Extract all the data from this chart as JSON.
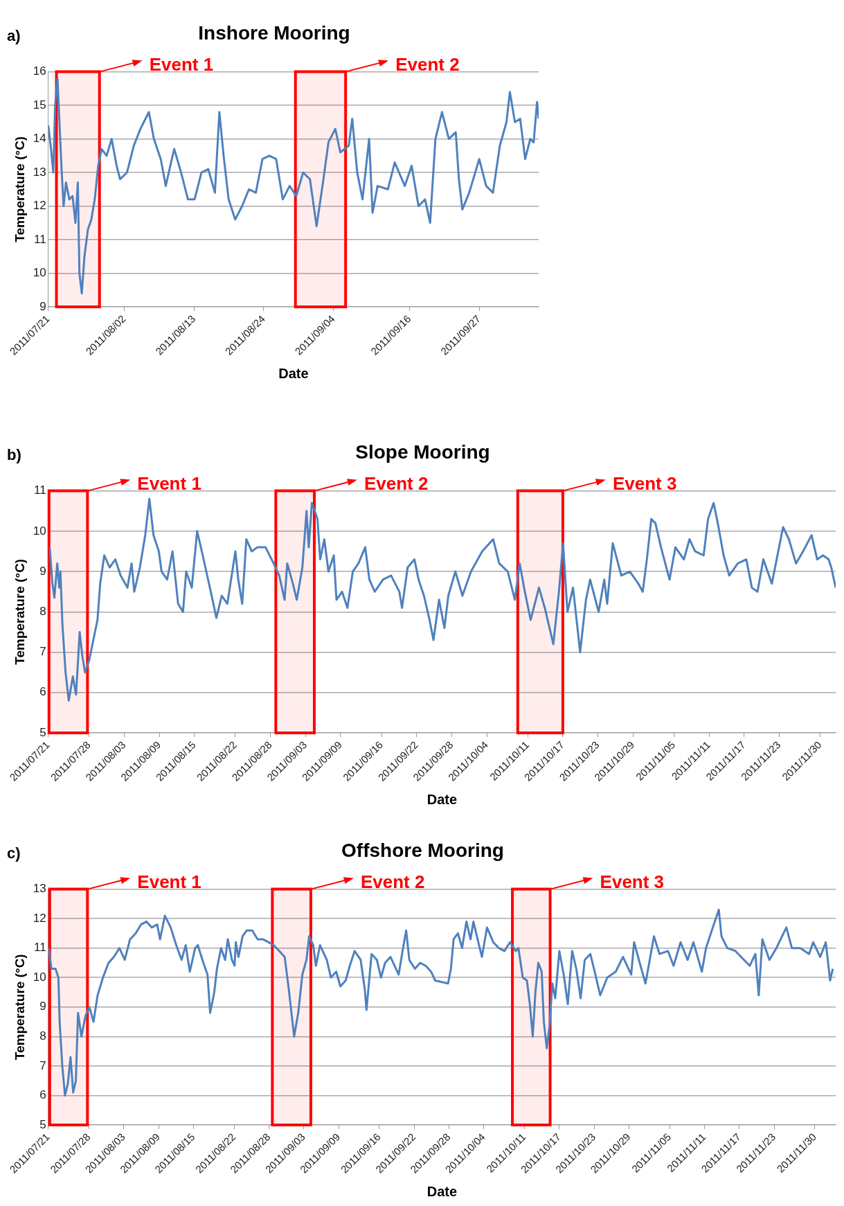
{
  "chart_data": [
    {
      "type": "line",
      "title": "Inshore Mooring",
      "xlabel": "Date",
      "ylabel": "Temperature (°C)",
      "annotations": [
        "a)"
      ],
      "color": "#4f81bd",
      "grid": "y",
      "legend": false,
      "marker": "none",
      "line_style": "solid",
      "x": [
        "2011-07-21T00:00",
        "2011-07-21T09:00",
        "2011-07-21T19:00",
        "2011-07-22T02:00",
        "2011-07-22T11:00",
        "2011-07-22T20:00",
        "2011-07-23T03:00",
        "2011-07-23T10:00",
        "2011-07-23T19:00",
        "2011-07-24T08:00",
        "2011-07-24T20:00",
        "2011-07-25T07:00",
        "2011-07-25T16:00",
        "2011-07-25T22:00",
        "2011-07-26T07:00",
        "2011-07-26T17:00",
        "2011-07-27T06:00",
        "2011-07-27T19:00",
        "2011-07-28T08:00",
        "2011-07-28T21:00",
        "2011-07-29T10:00",
        "2011-07-30T05:00",
        "2011-07-31T00:00",
        "2011-07-31T19:00",
        "2011-08-01T08:00",
        "2011-08-02T10:00",
        "2011-08-03T12:00",
        "2011-08-04T13:00",
        "2011-08-05T21:00",
        "2011-08-06T16:00",
        "2011-08-07T18:00",
        "2011-08-08T13:00",
        "2011-08-09T09:00",
        "2011-08-09T21:00",
        "2011-08-10T23:00",
        "2011-08-12T01:00",
        "2011-08-13T02:00",
        "2011-08-14T04:00",
        "2011-08-15T06:00",
        "2011-08-16T07:00",
        "2011-08-17T00:00",
        "2011-08-17T16:00",
        "2011-08-18T11:00",
        "2011-08-19T12:00",
        "2011-08-20T14:00",
        "2011-08-21T16:00",
        "2011-08-22T18:00",
        "2011-08-23T19:00",
        "2011-08-24T21:00",
        "2011-08-25T23:00",
        "2011-08-27T00:00",
        "2011-08-28T02:00",
        "2011-08-29T03:00",
        "2011-08-30T05:00",
        "2011-08-31T07:00",
        "2011-09-01T08:00",
        "2011-09-02T10:00",
        "2011-09-03T05:00",
        "2011-09-04T07:00",
        "2011-09-05T02:00",
        "2011-09-06T10:00",
        "2011-09-06T23:00",
        "2011-09-07T18:00",
        "2011-09-08T14:00",
        "2011-09-09T15:00",
        "2011-09-10T04:00",
        "2011-09-10T23:00",
        "2011-09-12T14:00",
        "2011-09-13T16:00",
        "2011-09-15T06:00",
        "2011-09-16T08:00",
        "2011-09-17T10:00",
        "2011-09-18T11:00",
        "2011-09-19T06:00",
        "2011-09-20T02:00",
        "2011-09-21T03:00",
        "2011-09-22T05:00",
        "2011-09-23T07:00",
        "2011-09-23T19:00",
        "2011-09-24T08:00",
        "2011-09-25T10:00",
        "2011-09-27T00:00",
        "2011-09-28T02:00",
        "2011-09-29T04:00",
        "2011-09-30T06:00",
        "2011-10-01T07:00",
        "2011-10-01T20:00",
        "2011-10-02T15:00",
        "2011-10-03T11:00",
        "2011-10-04T06:00",
        "2011-10-05T01:00",
        "2011-10-05T14:00",
        "2011-10-06T03:00",
        "2011-10-06T09:00"
      ],
      "values": [
        14.4,
        13.8,
        13.0,
        15.0,
        15.8,
        14.2,
        13.0,
        12.0,
        12.7,
        12.2,
        12.3,
        11.5,
        12.7,
        10.0,
        9.4,
        10.5,
        11.3,
        11.6,
        12.2,
        13.2,
        13.7,
        13.5,
        14.0,
        13.2,
        12.8,
        13.0,
        13.8,
        14.3,
        14.8,
        14.0,
        13.4,
        12.6,
        13.3,
        13.7,
        13.0,
        12.2,
        12.2,
        13.0,
        13.1,
        12.4,
        14.8,
        13.5,
        12.2,
        11.6,
        12.0,
        12.5,
        12.4,
        13.4,
        13.5,
        13.4,
        12.2,
        12.6,
        12.3,
        13.0,
        12.8,
        11.4,
        12.8,
        13.9,
        14.3,
        13.6,
        13.8,
        14.6,
        13.0,
        12.2,
        14.0,
        11.8,
        12.6,
        12.5,
        13.3,
        12.6,
        13.2,
        12.0,
        12.2,
        11.5,
        14.0,
        14.8,
        14.0,
        14.2,
        12.8,
        11.9,
        12.4,
        13.4,
        12.6,
        12.4,
        13.8,
        14.5,
        15.4,
        14.5,
        14.6,
        13.4,
        14.0,
        13.9,
        15.1,
        14.6
      ],
      "xlim": [
        "2011-07-21",
        "2011-10-06T09:00"
      ],
      "xticks": [
        {
          "value": "2011-07-21",
          "label": "2011/07/21"
        },
        {
          "value": "2011-08-02",
          "label": "2011/08/02"
        },
        {
          "value": "2011-08-13",
          "label": "2011/08/13"
        },
        {
          "value": "2011-08-24",
          "label": "2011/08/24"
        },
        {
          "value": "2011-09-04",
          "label": "2011/09/04"
        },
        {
          "value": "2011-09-16",
          "label": "2011/09/16"
        },
        {
          "value": "2011-09-27",
          "label": "2011/09/27"
        }
      ],
      "ylim": [
        9,
        16
      ],
      "yticks": [
        9,
        10,
        11,
        12,
        13,
        14,
        15,
        16
      ],
      "bands": [
        {
          "axis": "x",
          "from": "2011-07-22T07:00",
          "to": "2011-07-29T02:00",
          "label": "Event 1",
          "color": "#ff0000"
        },
        {
          "axis": "x",
          "from": "2011-08-29T00:00",
          "to": "2011-09-05T22:00",
          "label": "Event 2",
          "color": "#ff0000"
        }
      ]
    },
    {
      "type": "line",
      "title": "Slope Mooring",
      "xlabel": "Date",
      "ylabel": "Temperature (°C)",
      "annotations": [
        "b)"
      ],
      "color": "#4f81bd",
      "grid": "y",
      "legend": false,
      "marker": "none",
      "line_style": "solid",
      "x": [
        "2011-07-21T06:00",
        "2011-07-21T17:00",
        "2011-07-22T01:00",
        "2011-07-22T13:00",
        "2011-07-22T21:00",
        "2011-07-23T02:00",
        "2011-07-23T10:00",
        "2011-07-23T23:00",
        "2011-07-24T12:00",
        "2011-07-25T05:00",
        "2011-07-25T18:00",
        "2011-07-26T09:00",
        "2011-07-26T20:00",
        "2011-07-27T07:00",
        "2011-07-28T00:00",
        "2011-07-28T17:00",
        "2011-07-29T10:00",
        "2011-07-29T21:00",
        "2011-07-30T14:00",
        "2011-07-31T12:00",
        "2011-08-01T11:00",
        "2011-08-02T09:00",
        "2011-08-03T13:00",
        "2011-08-04T06:00",
        "2011-08-04T17:00",
        "2011-08-05T16:00",
        "2011-08-06T14:00",
        "2011-08-07T07:00",
        "2011-08-08T00:00",
        "2011-08-08T22:00",
        "2011-08-09T09:00",
        "2011-08-10T08:00",
        "2011-08-11T06:00",
        "2011-08-12T05:00",
        "2011-08-13T01:00",
        "2011-08-13T14:00",
        "2011-08-14T13:00",
        "2011-08-15T11:00",
        "2011-08-16T10:00",
        "2011-08-17T08:00",
        "2011-08-17T19:00",
        "2011-08-18T18:00",
        "2011-08-19T16:00",
        "2011-08-20T15:00",
        "2011-08-22T00:00",
        "2011-08-22T12:00",
        "2011-08-23T04:00",
        "2011-08-23T21:00",
        "2011-08-24T19:00",
        "2011-08-25T18:00",
        "2011-08-27T04:00",
        "2011-08-28T13:00",
        "2011-08-29T12:00",
        "2011-08-30T10:00",
        "2011-08-30T21:00",
        "2011-08-31T20:00",
        "2011-09-01T12:00",
        "2011-09-02T11:00",
        "2011-09-03T04:00",
        "2011-09-03T13:00",
        "2011-09-04T02:00",
        "2011-09-05T01:00",
        "2011-09-05T12:00",
        "2011-09-06T05:00",
        "2011-09-06T22:00",
        "2011-09-07T20:00",
        "2011-09-08T07:00",
        "2011-09-09T06:00",
        "2011-09-10T04:00",
        "2011-09-11T02:00",
        "2011-09-12T01:00",
        "2011-09-13T05:00",
        "2011-09-13T22:00",
        "2011-09-14T20:00",
        "2011-09-16T06:00",
        "2011-09-17T15:00",
        "2011-09-19T01:00",
        "2011-09-19T12:00",
        "2011-09-20T11:00",
        "2011-09-21T15:00",
        "2011-09-22T08:00",
        "2011-09-23T06:00",
        "2011-09-24T05:00",
        "2011-09-24T21:00",
        "2011-09-25T20:00",
        "2011-09-26T18:00",
        "2011-09-27T10:00",
        "2011-09-28T15:00",
        "2011-09-29T20:00",
        "2011-10-01T07:00",
        "2011-10-03T05:00",
        "2011-10-05T02:00",
        "2011-10-06T03:00",
        "2011-10-07T14:00",
        "2011-10-08T19:00",
        "2011-10-09T15:00",
        "2011-10-10T12:00",
        "2011-10-11T12:00",
        "2011-10-12T22:00",
        "2011-10-13T22:00",
        "2011-10-15T09:00",
        "2011-10-16T08:00",
        "2011-10-17T01:00",
        "2011-10-17T19:00",
        "2011-10-18T18:00",
        "2011-10-19T23:00",
        "2011-10-20T23:00",
        "2011-10-21T16:00",
        "2011-10-23T03:00",
        "2011-10-24T02:00",
        "2011-10-24T14:00",
        "2011-10-25T13:00",
        "2011-10-27T00:00",
        "2011-10-28T11:00",
        "2011-10-29T22:00",
        "2011-10-30T16:00",
        "2011-10-31T09:00",
        "2011-11-01T03:00",
        "2011-11-01T20:00",
        "2011-11-02T19:00",
        "2011-11-04T06:00",
        "2011-11-05T06:00",
        "2011-11-06T17:00",
        "2011-11-07T16:00",
        "2011-11-08T15:00",
        "2011-11-10T02:00",
        "2011-11-10T20:00",
        "2011-11-11T19:00",
        "2011-11-12T12:00",
        "2011-11-13T12:00",
        "2011-11-14T11:00",
        "2011-11-15T22:00",
        "2011-11-17T09:00",
        "2011-11-18T08:00",
        "2011-11-19T07:00",
        "2011-11-20T07:00",
        "2011-11-21T18:00",
        "2011-11-22T17:00",
        "2011-11-23T16:00",
        "2011-11-24T16:00",
        "2011-11-25T21:00",
        "2011-11-27T02:00",
        "2011-11-28T13:00",
        "2011-11-29T12:00",
        "2011-11-30T12:00",
        "2011-12-01T11:00",
        "2011-12-01T22:00",
        "2011-12-02T16:00"
      ],
      "values": [
        9.6,
        8.7,
        8.35,
        9.2,
        8.6,
        9.0,
        7.7,
        6.5,
        5.8,
        6.4,
        5.95,
        7.5,
        6.9,
        6.5,
        6.8,
        7.3,
        7.8,
        8.7,
        9.4,
        9.1,
        9.3,
        8.9,
        8.6,
        9.2,
        8.5,
        9.1,
        9.9,
        10.8,
        9.9,
        9.5,
        9.0,
        8.8,
        9.5,
        8.2,
        8.0,
        9.0,
        8.6,
        10.0,
        9.4,
        8.8,
        8.5,
        7.85,
        8.4,
        8.2,
        9.5,
        8.8,
        8.2,
        9.8,
        9.5,
        9.6,
        9.6,
        9.2,
        8.9,
        8.3,
        9.2,
        8.7,
        8.3,
        9.1,
        10.5,
        9.6,
        10.7,
        10.3,
        9.3,
        9.8,
        9.0,
        9.4,
        8.3,
        8.5,
        8.1,
        9.0,
        9.2,
        9.6,
        8.8,
        8.5,
        8.8,
        8.9,
        8.5,
        8.1,
        9.1,
        9.3,
        8.8,
        8.4,
        7.8,
        7.3,
        8.3,
        7.6,
        8.4,
        9.0,
        8.4,
        9.0,
        9.5,
        9.8,
        9.2,
        9.0,
        8.3,
        9.2,
        8.5,
        7.8,
        8.6,
        8.1,
        7.2,
        8.5,
        9.7,
        8.0,
        8.6,
        7.0,
        8.3,
        8.8,
        8.0,
        8.8,
        8.2,
        9.7,
        8.9,
        9.0,
        8.7,
        8.5,
        9.3,
        10.3,
        10.2,
        9.6,
        8.8,
        9.6,
        9.3,
        9.8,
        9.5,
        9.4,
        10.3,
        10.7,
        10.2,
        9.4,
        8.9,
        9.2,
        9.3,
        8.6,
        8.5,
        9.3,
        8.7,
        9.4,
        10.1,
        9.8,
        9.2,
        9.5,
        9.9,
        9.3,
        9.4,
        9.3,
        9.1,
        8.6
      ],
      "xlim": [
        "2011-07-21",
        "2011-12-02T16:00"
      ],
      "xticks": [
        {
          "value": "2011-07-21",
          "label": "2011/07/21"
        },
        {
          "value": "2011-07-28",
          "label": "2011/07/28"
        },
        {
          "value": "2011-08-03",
          "label": "2011/08/03"
        },
        {
          "value": "2011-08-09",
          "label": "2011/08/09"
        },
        {
          "value": "2011-08-15",
          "label": "2011/08/15"
        },
        {
          "value": "2011-08-22",
          "label": "2011/08/22"
        },
        {
          "value": "2011-08-28",
          "label": "2011/08/28"
        },
        {
          "value": "2011-09-03",
          "label": "2011/09/03"
        },
        {
          "value": "2011-09-09",
          "label": "2011/09/09"
        },
        {
          "value": "2011-09-16",
          "label": "2011/09/16"
        },
        {
          "value": "2011-09-22",
          "label": "2011/09/22"
        },
        {
          "value": "2011-09-28",
          "label": "2011/09/28"
        },
        {
          "value": "2011-10-04",
          "label": "2011/10/04"
        },
        {
          "value": "2011-10-11",
          "label": "2011/10/11"
        },
        {
          "value": "2011-10-17",
          "label": "2011/10/17"
        },
        {
          "value": "2011-10-23",
          "label": "2011/10/23"
        },
        {
          "value": "2011-10-29",
          "label": "2011/10/29"
        },
        {
          "value": "2011-11-05",
          "label": "2011/11/05"
        },
        {
          "value": "2011-11-11",
          "label": "2011/11/11"
        },
        {
          "value": "2011-11-17",
          "label": "2011/11/17"
        },
        {
          "value": "2011-11-23",
          "label": "2011/11/23"
        },
        {
          "value": "2011-11-30",
          "label": "2011/11/30"
        }
      ],
      "ylim": [
        5,
        11
      ],
      "yticks": [
        5,
        6,
        7,
        8,
        9,
        10,
        11
      ],
      "bands": [
        {
          "axis": "x",
          "from": "2011-07-21T03:00",
          "to": "2011-07-27T17:00",
          "label": "Event 1",
          "color": "#ff0000"
        },
        {
          "axis": "x",
          "from": "2011-08-28T22:00",
          "to": "2011-09-04T12:00",
          "label": "Event 2",
          "color": "#ff0000"
        },
        {
          "axis": "x",
          "from": "2011-10-09T07:00",
          "to": "2011-10-17T00:00",
          "label": "Event 3",
          "color": "#ff0000"
        }
      ]
    },
    {
      "type": "line",
      "title": "Offshore Mooring",
      "xlabel": "Date",
      "ylabel": "Temperature (°C)",
      "annotations": [
        "c)"
      ],
      "color": "#4f81bd",
      "grid": "y",
      "legend": false,
      "marker": "none",
      "line_style": "solid",
      "x": [
        "2011-07-21T02:00",
        "2011-07-21T13:00",
        "2011-07-22T06:00",
        "2011-07-22T18:00",
        "2011-07-22T23:00",
        "2011-07-23T10:00",
        "2011-07-23T21:00",
        "2011-07-24T09:00",
        "2011-07-24T20:00",
        "2011-07-25T07:00",
        "2011-07-25T18:00",
        "2011-07-26T03:00",
        "2011-07-26T17:00",
        "2011-07-27T10:00",
        "2011-07-28T02:00",
        "2011-07-28T19:00",
        "2011-07-29T12:00",
        "2011-07-30T10:00",
        "2011-07-31T09:00",
        "2011-08-01T07:00",
        "2011-08-02T06:00",
        "2011-08-03T04:00",
        "2011-08-04T02:00",
        "2011-08-05T01:00",
        "2011-08-05T23:00",
        "2011-08-06T22:00",
        "2011-08-07T20:00",
        "2011-08-08T18:00",
        "2011-08-09T06:00",
        "2011-08-10T02:00",
        "2011-08-11T02:00",
        "2011-08-12T01:00",
        "2011-08-12T23:00",
        "2011-08-13T16:00",
        "2011-08-14T09:00",
        "2011-08-15T07:00",
        "2011-08-15T18:00",
        "2011-08-16T17:00",
        "2011-08-17T10:00",
        "2011-08-17T21:00",
        "2011-08-18T14:00",
        "2011-08-19T01:00",
        "2011-08-19T18:00",
        "2011-08-20T11:00",
        "2011-08-20T22:00",
        "2011-08-21T15:00",
        "2011-08-22T02:00",
        "2011-08-22T07:00",
        "2011-08-22T18:00",
        "2011-08-23T11:00",
        "2011-08-24T04:00",
        "2011-08-25T03:00",
        "2011-08-26T01:00",
        "2011-08-26T23:00",
        "2011-08-27T22:00",
        "2011-08-28T20:00",
        "2011-08-29T19:00",
        "2011-08-30T17:00",
        "2011-08-31T10:00",
        "2011-09-01T08:00",
        "2011-09-02T01:00",
        "2011-09-02T18:00",
        "2011-09-03T11:00",
        "2011-09-03T22:00",
        "2011-09-04T15:00",
        "2011-09-05T02:00",
        "2011-09-05T19:00",
        "2011-09-06T23:00",
        "2011-09-07T16:00",
        "2011-09-08T14:00",
        "2011-09-09T07:00",
        "2011-09-10T05:00",
        "2011-09-10T22:00",
        "2011-09-11T18:00",
        "2011-09-12T19:00",
        "2011-09-13T12:00",
        "2011-09-13T19:00",
        "2011-09-14T16:00",
        "2011-09-15T14:00",
        "2011-09-16T07:00",
        "2011-09-17T00:00",
        "2011-09-17T22:00",
        "2011-09-19T08:00",
        "2011-09-20T00:00",
        "2011-09-20T15:00",
        "2011-09-21T04:00",
        "2011-09-22T03:00",
        "2011-09-23T01:00",
        "2011-09-24T00:00",
        "2011-09-24T22:00",
        "2011-09-25T15:00",
        "2011-09-27T20:00",
        "2011-09-28T08:00",
        "2011-09-28T19:00",
        "2011-09-29T13:00",
        "2011-09-30T06:00",
        "2011-10-01T00:00",
        "2011-10-01T17:00",
        "2011-10-02T05:00",
        "2011-10-03T04:00",
        "2011-10-03T16:00",
        "2011-10-04T13:00",
        "2011-10-05T15:00",
        "2011-10-06T14:00",
        "2011-10-07T13:00",
        "2011-10-08T12:00",
        "2011-10-09T12:00",
        "2011-10-09T23:00",
        "2011-10-10T17:00",
        "2011-10-11T10:00",
        "2011-10-11T22:00",
        "2011-10-12T10:00",
        "2011-10-12T21:00",
        "2011-10-13T09:00",
        "2011-10-13T23:00",
        "2011-10-14T08:00",
        "2011-10-14T20:00",
        "2011-10-15T08:00",
        "2011-10-15T19:00",
        "2011-10-16T07:00",
        "2011-10-17T00:00",
        "2011-10-17T18:00",
        "2011-10-18T11:00",
        "2011-10-19T05:00",
        "2011-10-19T22:00",
        "2011-10-20T16:00",
        "2011-10-21T09:00",
        "2011-10-22T08:00",
        "2011-10-23T02:00",
        "2011-10-24T01:00",
        "2011-10-25T06:00",
        "2011-10-26T17:00",
        "2011-10-27T23:00",
        "2011-10-29T09:00",
        "2011-10-29T21:00",
        "2011-10-30T20:00",
        "2011-10-31T20:00",
        "2011-11-02T07:00",
        "2011-11-03T06:00",
        "2011-11-04T17:00",
        "2011-11-05T16:00",
        "2011-11-06T21:00",
        "2011-11-08T02:00",
        "2011-11-09T02:00",
        "2011-11-10T13:00",
        "2011-11-11T06:00",
        "2011-11-12T06:00",
        "2011-11-13T11:00",
        "2011-11-13T22:00",
        "2011-11-14T22:00",
        "2011-11-16T08:00",
        "2011-11-17T19:00",
        "2011-11-18T19:00",
        "2011-11-19T18:00",
        "2011-11-20T08:00",
        "2011-11-20T23:00",
        "2011-11-22T04:00",
        "2011-11-23T09:00",
        "2011-11-25T02:00",
        "2011-11-26T01:00",
        "2011-11-27T12:00",
        "2011-11-29T00:00",
        "2011-11-29T17:00",
        "2011-11-30T22:00",
        "2011-12-01T21:00",
        "2011-12-02T15:00",
        "2011-12-03T02:00"
      ],
      "values": [
        11.0,
        10.3,
        10.3,
        10.0,
        8.5,
        7.0,
        6.0,
        6.4,
        7.3,
        6.1,
        6.5,
        8.8,
        8.0,
        8.7,
        9.0,
        8.5,
        9.4,
        10.0,
        10.5,
        10.7,
        11.0,
        10.6,
        11.3,
        11.5,
        11.8,
        11.9,
        11.7,
        11.8,
        11.3,
        12.1,
        11.7,
        11.1,
        10.6,
        11.1,
        10.2,
        11.0,
        11.1,
        10.5,
        10.1,
        8.8,
        9.5,
        10.3,
        11.0,
        10.6,
        11.3,
        10.6,
        10.4,
        11.2,
        10.7,
        11.4,
        11.6,
        11.6,
        11.3,
        11.3,
        11.2,
        11.1,
        10.9,
        10.7,
        9.6,
        8.0,
        8.8,
        10.1,
        10.6,
        11.4,
        11.1,
        10.4,
        11.1,
        10.6,
        10.0,
        10.2,
        9.7,
        9.9,
        10.4,
        10.9,
        10.6,
        9.6,
        8.9,
        10.8,
        10.6,
        10.0,
        10.5,
        10.7,
        10.1,
        10.9,
        11.6,
        10.6,
        10.3,
        10.5,
        10.4,
        10.2,
        9.9,
        9.8,
        10.3,
        11.3,
        11.5,
        11.0,
        11.9,
        11.3,
        11.9,
        11.1,
        10.7,
        11.7,
        11.2,
        11.0,
        10.9,
        11.2,
        10.9,
        11.0,
        10.0,
        9.9,
        9.1,
        8.0,
        9.5,
        10.5,
        10.2,
        8.5,
        7.6,
        8.4,
        9.8,
        9.3,
        10.9,
        10.1,
        9.1,
        10.9,
        10.3,
        9.3,
        10.6,
        10.8,
        10.2,
        9.4,
        10.0,
        10.2,
        10.7,
        10.1,
        11.2,
        10.5,
        9.8,
        11.4,
        10.8,
        10.9,
        10.4,
        11.2,
        10.6,
        11.2,
        10.2,
        11.0,
        11.6,
        12.3,
        11.4,
        11.0,
        10.9,
        10.6,
        10.4,
        10.8,
        9.4,
        11.3,
        10.6,
        11.0,
        11.7,
        11.0,
        11.0,
        10.8,
        11.2,
        10.7,
        11.2,
        9.9,
        10.3
      ],
      "xlim": [
        "2011-07-21",
        "2011-12-03T14:00"
      ],
      "xticks": [
        {
          "value": "2011-07-21",
          "label": "2011/07/21"
        },
        {
          "value": "2011-07-28",
          "label": "2011/07/28"
        },
        {
          "value": "2011-08-03",
          "label": "2011/08/03"
        },
        {
          "value": "2011-08-09",
          "label": "2011/08/09"
        },
        {
          "value": "2011-08-15",
          "label": "2011/08/15"
        },
        {
          "value": "2011-08-22",
          "label": "2011/08/22"
        },
        {
          "value": "2011-08-28",
          "label": "2011/08/28"
        },
        {
          "value": "2011-09-03",
          "label": "2011/09/03"
        },
        {
          "value": "2011-09-09",
          "label": "2011/09/09"
        },
        {
          "value": "2011-09-16",
          "label": "2011/09/16"
        },
        {
          "value": "2011-09-22",
          "label": "2011/09/22"
        },
        {
          "value": "2011-09-28",
          "label": "2011/09/28"
        },
        {
          "value": "2011-10-04",
          "label": "2011/10/04"
        },
        {
          "value": "2011-10-11",
          "label": "2011/10/11"
        },
        {
          "value": "2011-10-17",
          "label": "2011/10/17"
        },
        {
          "value": "2011-10-23",
          "label": "2011/10/23"
        },
        {
          "value": "2011-10-29",
          "label": "2011/10/29"
        },
        {
          "value": "2011-11-05",
          "label": "2011/11/05"
        },
        {
          "value": "2011-11-11",
          "label": "2011/11/11"
        },
        {
          "value": "2011-11-17",
          "label": "2011/11/17"
        },
        {
          "value": "2011-11-23",
          "label": "2011/11/23"
        },
        {
          "value": "2011-11-30",
          "label": "2011/11/30"
        }
      ],
      "ylim": [
        5,
        13
      ],
      "yticks": [
        5,
        6,
        7,
        8,
        9,
        10,
        11,
        12,
        13
      ],
      "bands": [
        {
          "axis": "x",
          "from": "2011-07-21T06:00",
          "to": "2011-07-27T18:00",
          "label": "Event 1",
          "color": "#ff0000"
        },
        {
          "axis": "x",
          "from": "2011-08-28T14:00",
          "to": "2011-09-04T05:00",
          "label": "Event 2",
          "color": "#ff0000"
        },
        {
          "axis": "x",
          "from": "2011-10-08T22:00",
          "to": "2011-10-15T10:00",
          "label": "Event 3",
          "color": "#ff0000"
        }
      ]
    }
  ]
}
